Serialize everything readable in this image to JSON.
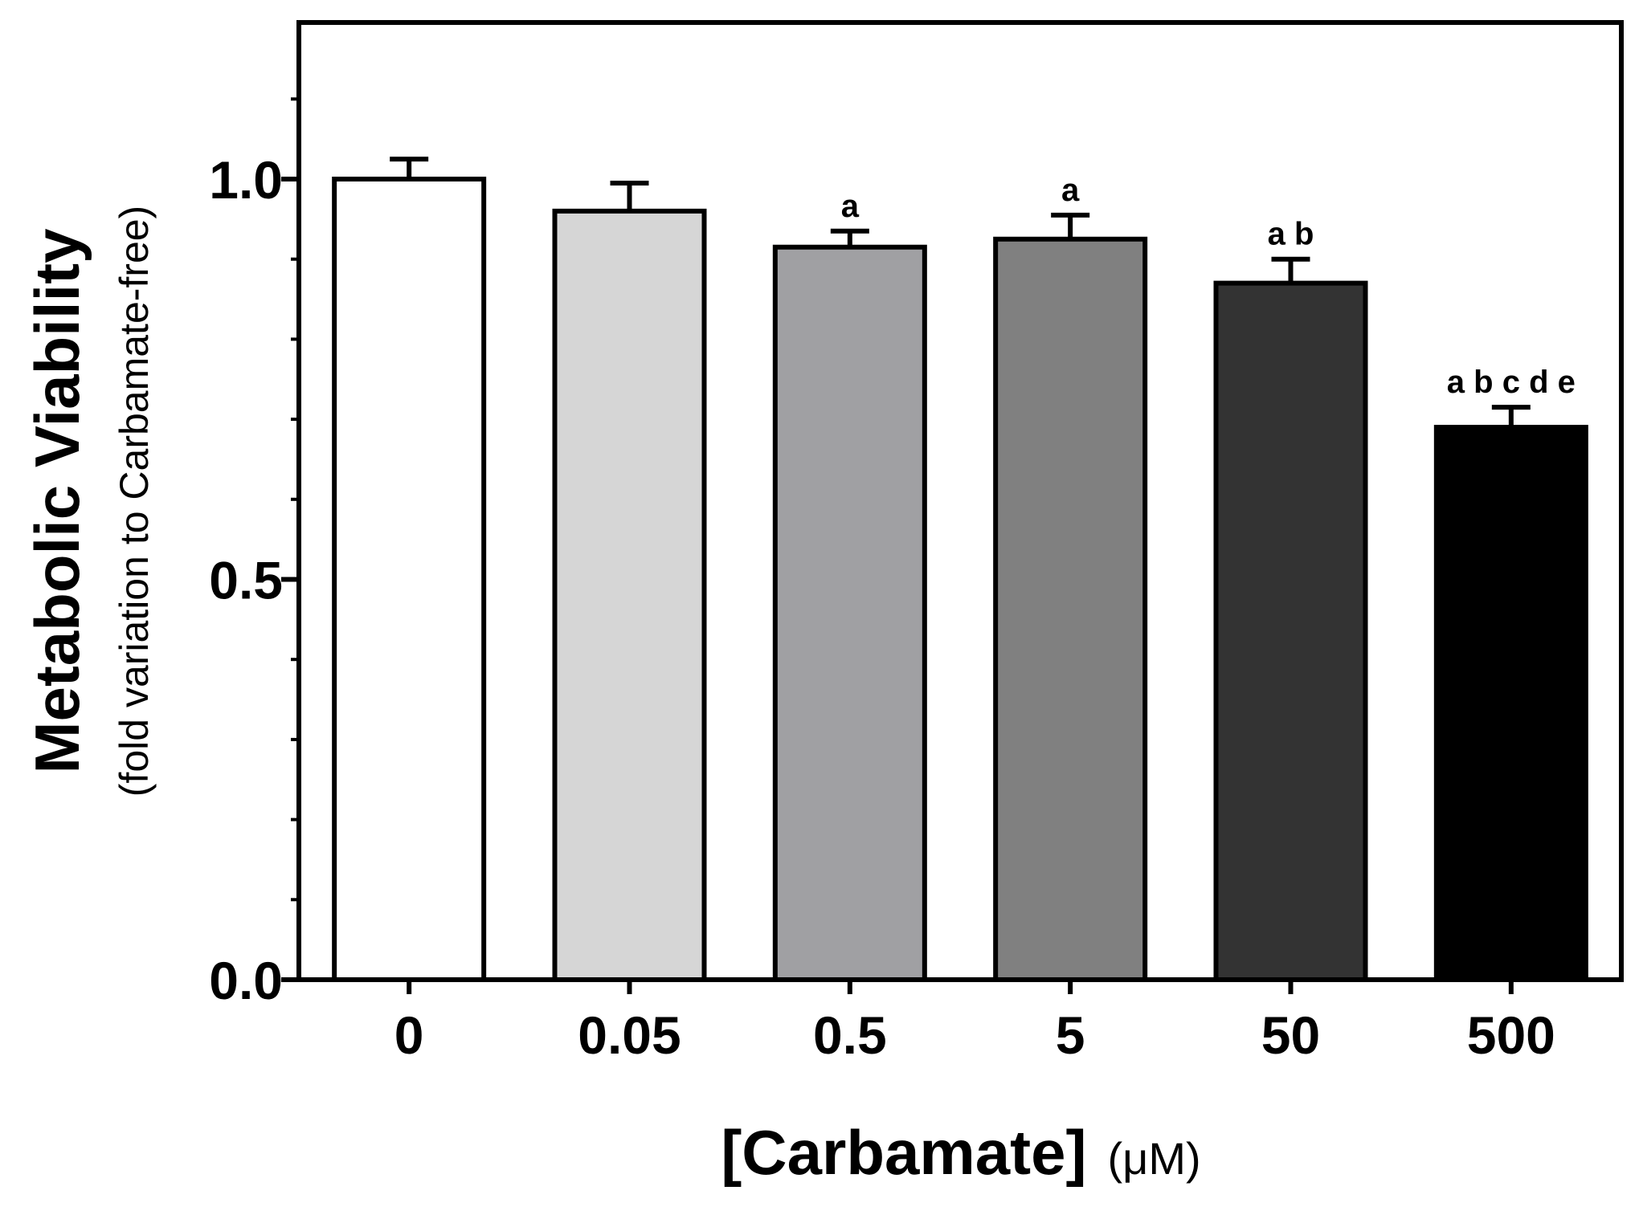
{
  "chart_data": {
    "type": "bar",
    "categories": [
      "0",
      "0.05",
      "0.5",
      "5",
      "50",
      "500"
    ],
    "values": [
      1.0,
      0.96,
      0.915,
      0.925,
      0.87,
      0.69
    ],
    "errors": [
      0.025,
      0.035,
      0.02,
      0.03,
      0.03,
      0.025
    ],
    "bar_colors": [
      "#ffffff",
      "#d6d6d6",
      "#a0a0a3",
      "#808080",
      "#333333",
      "#000000"
    ],
    "significance": [
      "",
      "",
      "a",
      "a",
      "a b",
      "a b c d e"
    ],
    "ylim": [
      0,
      1.2
    ],
    "yticks": [
      0.0,
      0.5,
      1.0
    ],
    "ytick_labels": [
      "0.0",
      "0.5",
      "1.0"
    ],
    "ylabel": "Metabolic Viability",
    "ylabel_sub": "(fold variation to Carbamate-free)",
    "xlabel": "[Carbamate]",
    "xlabel_unit": "(μM)",
    "title": ""
  }
}
